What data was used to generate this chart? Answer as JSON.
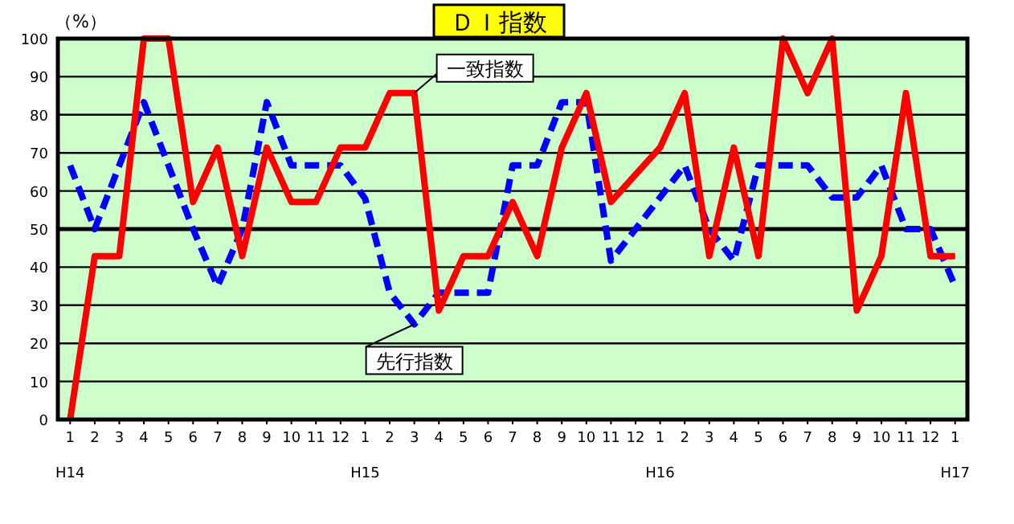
{
  "chart_data": {
    "type": "line",
    "title": "ＤＩ指数",
    "ylabel": "（%）",
    "categories": [
      "1\nH14",
      "2",
      "3",
      "4",
      "5",
      "6",
      "7",
      "8",
      "9",
      "10",
      "11",
      "12",
      "1\nH15",
      "2",
      "3",
      "4",
      "5",
      "6",
      "7",
      "8",
      "9",
      "10",
      "11",
      "12",
      "1\nH16",
      "2",
      "3",
      "4",
      "5",
      "6",
      "7",
      "8",
      "9",
      "10",
      "11",
      "12",
      "1\nH17"
    ],
    "series": [
      {
        "name": "先行指数",
        "color": "#0000ff",
        "line_style": "dashed",
        "values": [
          66.7,
          50,
          66.7,
          83.3,
          66.7,
          50,
          35,
          50,
          83.3,
          66.7,
          66.7,
          66.7,
          58,
          33.3,
          25,
          33.3,
          33.3,
          33.3,
          66.7,
          66.7,
          83.3,
          83.3,
          41.7,
          50,
          58.3,
          66.7,
          50,
          41.7,
          66.7,
          66.7,
          66.7,
          58.3,
          58.3,
          66.7,
          50,
          50,
          35
        ]
      },
      {
        "name": "一致指数",
        "color": "#ff0000",
        "line_style": "solid",
        "values": [
          0,
          42.9,
          42.9,
          100,
          100,
          57.1,
          71.4,
          42.9,
          71.4,
          57.1,
          57.1,
          71.4,
          71.4,
          85.7,
          85.7,
          28.6,
          42.9,
          42.9,
          57.1,
          42.9,
          71.4,
          85.7,
          57.1,
          64.3,
          71.4,
          85.7,
          42.9,
          71.4,
          42.9,
          100,
          85.7,
          100,
          28.6,
          42.9,
          85.7,
          42.9,
          42.9
        ]
      }
    ],
    "ylim": [
      0,
      100
    ],
    "yticks": [
      0,
      10,
      20,
      30,
      40,
      50,
      60,
      70,
      80,
      90,
      100
    ],
    "grid": "y",
    "legend": false,
    "ref_lines": [
      {
        "axis": "y",
        "value": 50,
        "color": "#000000"
      }
    ]
  }
}
